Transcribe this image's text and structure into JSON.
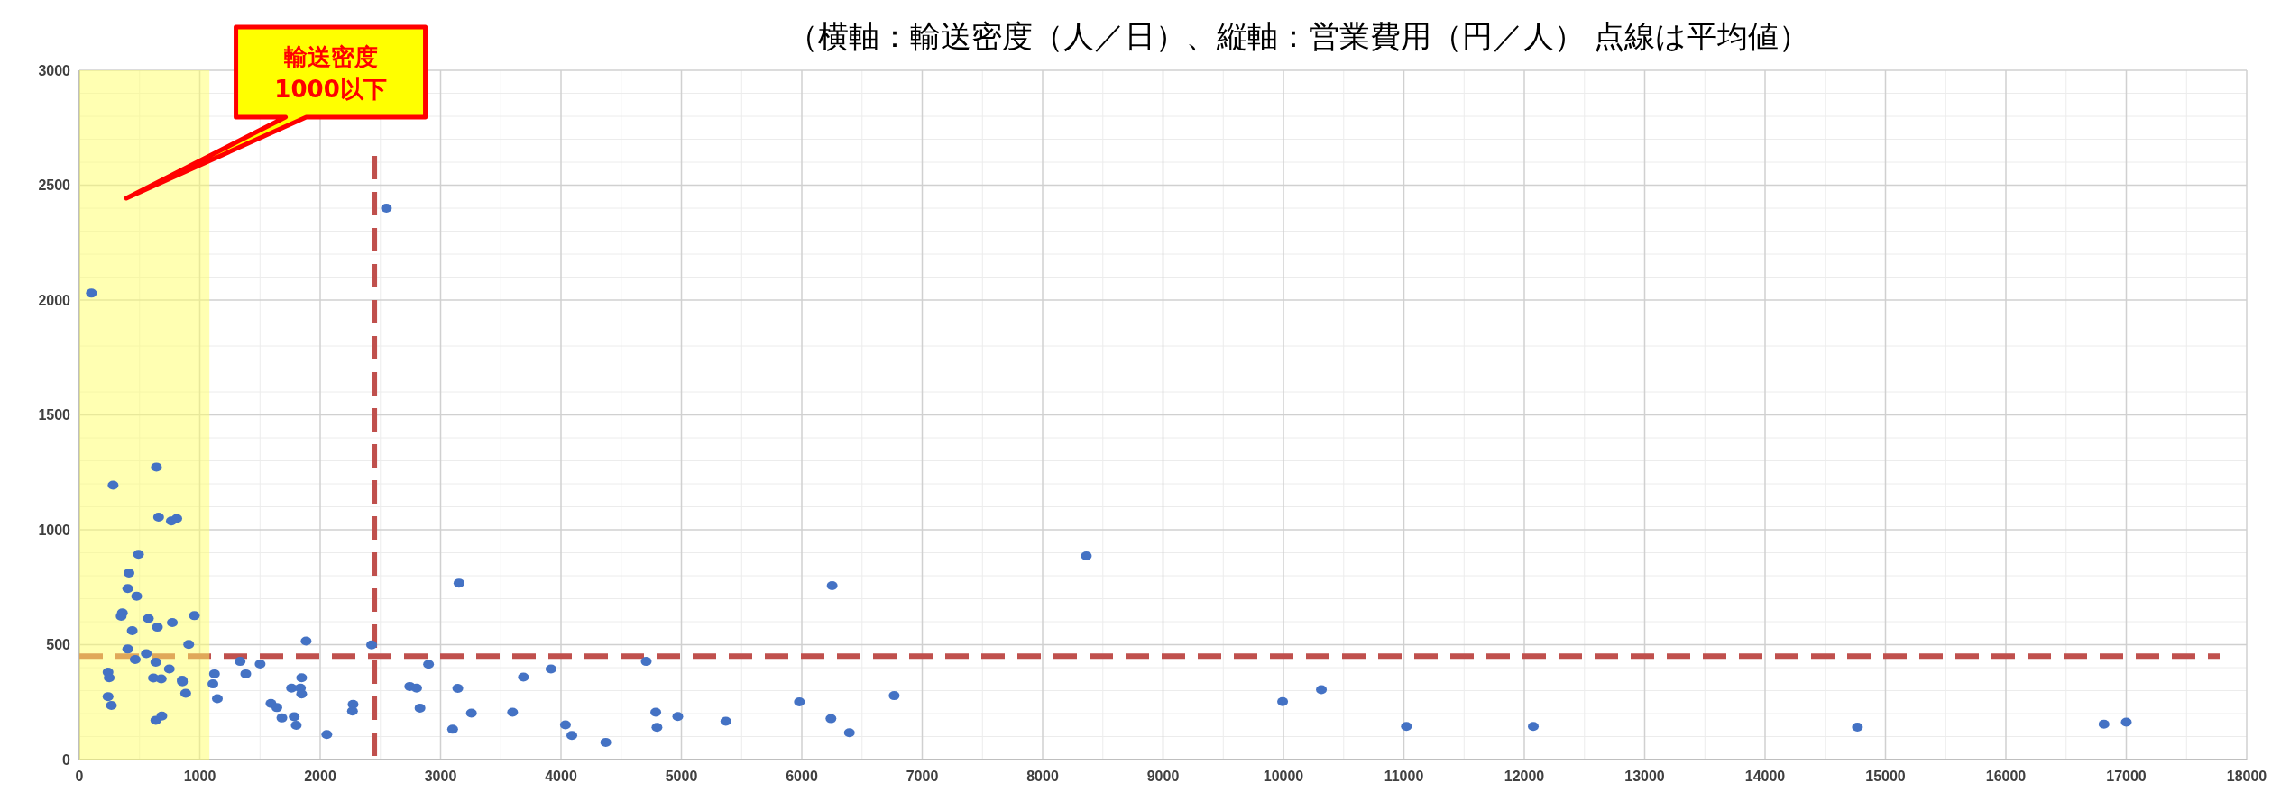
{
  "chart_data": {
    "type": "scatter",
    "title": "（横軸：輸送密度（人／日）、縦軸：営業費用（円／人） 点線は平均値）",
    "x": [
      100,
      280,
      640,
      658,
      764,
      809,
      491,
      412,
      402,
      476,
      347,
      357,
      573,
      648,
      772,
      955,
      439,
      402,
      908,
      556,
      464,
      635,
      747,
      238,
      248,
      615,
      680,
      854,
      856,
      883,
      238,
      266,
      635,
      685,
      1122,
      1109,
      1146,
      1335,
      1501,
      1382,
      1883,
      1846,
      1762,
      1836,
      1846,
      1591,
      1640,
      1682,
      1784,
      1801,
      2055,
      2273,
      2268,
      2427,
      2744,
      2801,
      2900,
      2829,
      3100,
      2550,
      3153,
      3143,
      3256,
      3598,
      3688,
      3917,
      4037,
      4090,
      4372,
      4708,
      4787,
      4797,
      4970,
      5369,
      5980,
      6252,
      6242,
      6395,
      6767,
      8363,
      9993,
      10315,
      11021,
      12075,
      14767,
      16815,
      17000
    ],
    "series": [
      {
        "color": "#4472c4",
        "values": [
          2030,
          1194,
          1273,
          1055,
          1038,
          1049,
          893,
          812,
          744,
          711,
          624,
          638,
          614,
          576,
          596,
          626,
          561,
          481,
          501,
          461,
          435,
          424,
          394,
          380,
          356,
          355,
          351,
          345,
          338,
          288,
          274,
          235,
          171,
          189,
          373,
          329,
          265,
          427,
          416,
          373,
          516,
          356,
          311,
          311,
          285,
          244,
          226,
          181,
          186,
          149,
          109,
          240,
          211,
          499,
          318,
          311,
          415,
          224,
          132,
          2400,
          768,
          310,
          202,
          206,
          359,
          394,
          151,
          105,
          75,
          427,
          206,
          140,
          187,
          167,
          251,
          757,
          178,
          117,
          278,
          886,
          252,
          304,
          144,
          144,
          141,
          154,
          163
        ]
      }
    ],
    "marker": "circle",
    "xlim": [
      0,
      18000
    ],
    "ylim": [
      0,
      3000
    ],
    "xticks": [
      0,
      1000,
      2000,
      3000,
      4000,
      5000,
      6000,
      7000,
      8000,
      9000,
      10000,
      11000,
      12000,
      13000,
      14000,
      15000,
      16000,
      17000,
      18000
    ],
    "yticks": [
      0,
      500,
      1000,
      1500,
      2000,
      2500,
      3000
    ],
    "grid": true,
    "ref_lines": [
      {
        "axis": "y",
        "value": 450,
        "color": "#c0504d",
        "line_style": "dashed"
      },
      {
        "axis": "x",
        "value": 2450,
        "color": "#c0504d",
        "line_style": "dashed"
      }
    ],
    "bands": [
      {
        "axis": "x",
        "from": 0,
        "to": 1080,
        "color": "#ffff66"
      }
    ],
    "annotations": [
      "輸送密度\n1000以下"
    ]
  }
}
